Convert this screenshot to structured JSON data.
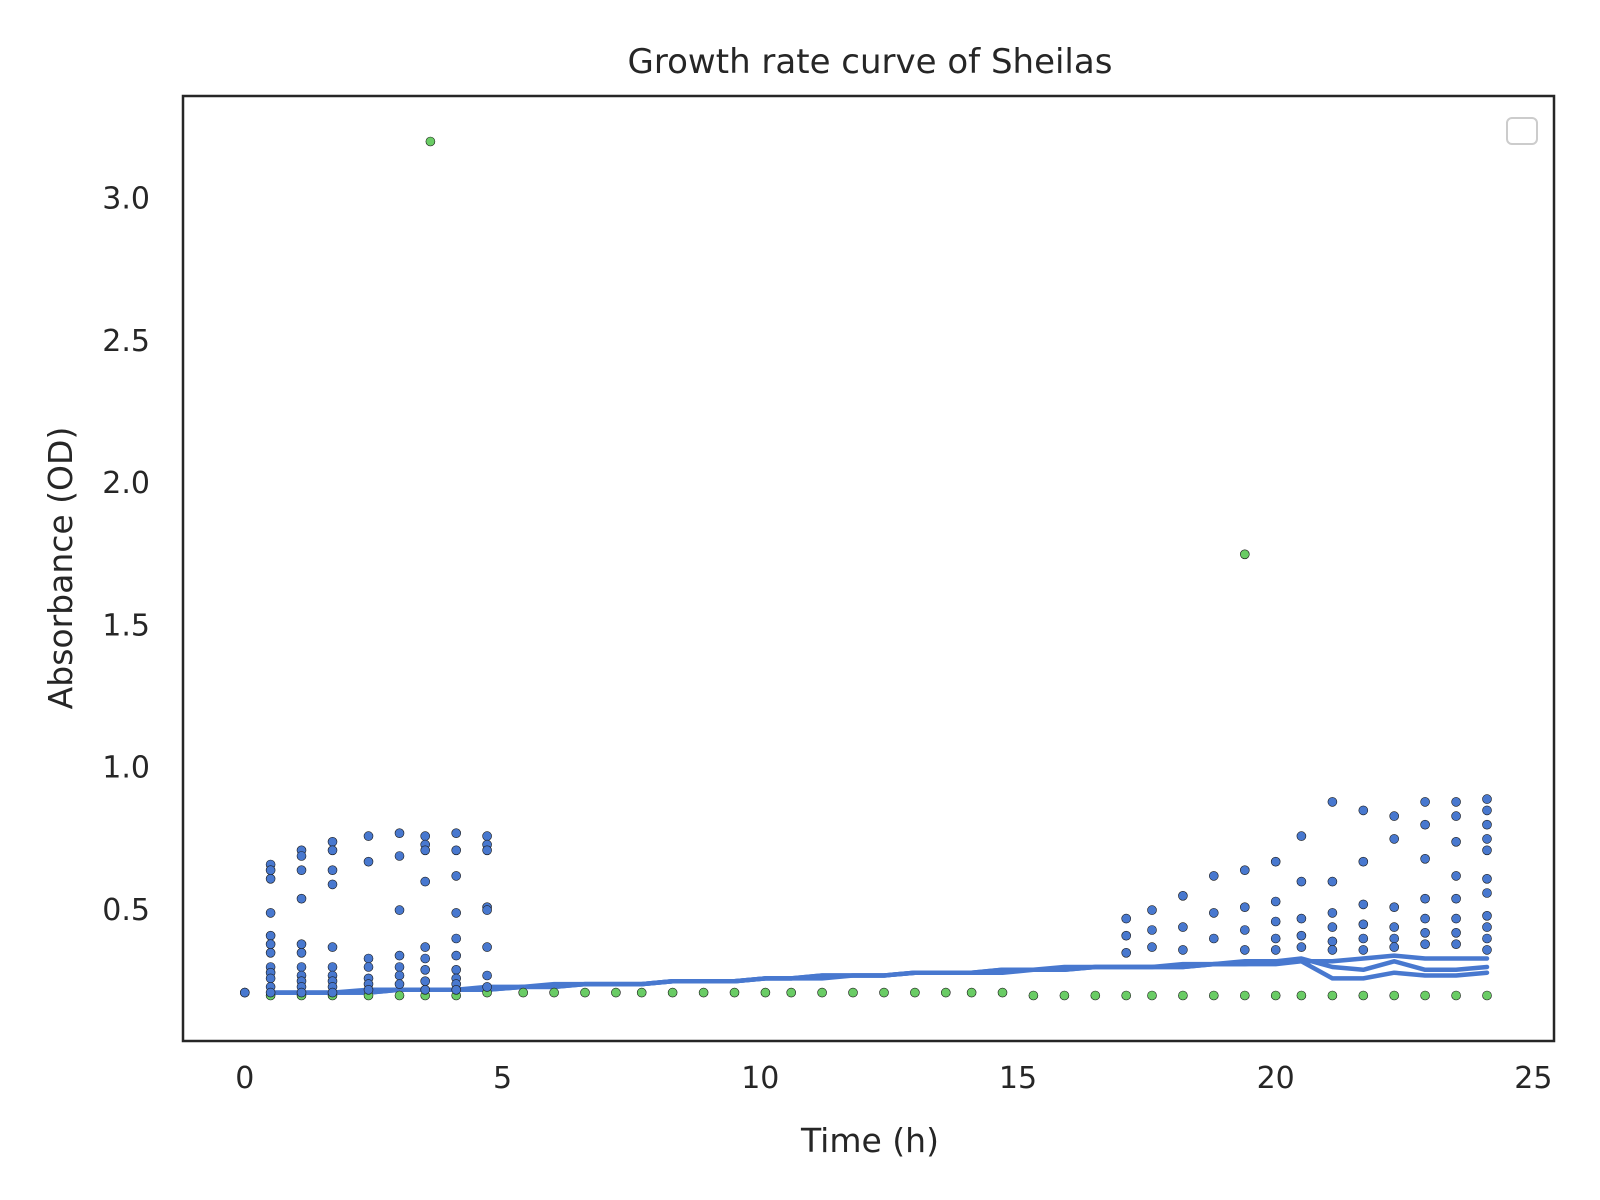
{
  "chart_data": {
    "type": "scatter",
    "title": "Growth rate curve of Sheilas",
    "xlabel": "Time (h)",
    "ylabel": "Absorbance (OD)",
    "xlim": [
      -1.2,
      25.4
    ],
    "ylim": [
      0.04,
      3.36
    ],
    "xticks": [
      0,
      5,
      10,
      15,
      20,
      25
    ],
    "xtick_labels": [
      "0",
      "5",
      "10",
      "15",
      "20",
      "25"
    ],
    "yticks": [
      0.5,
      1.0,
      1.5,
      2.0,
      2.5,
      3.0
    ],
    "ytick_labels": [
      "0.5",
      "1.0",
      "1.5",
      "2.0",
      "2.5",
      "3.0"
    ],
    "grid": false,
    "legend": {
      "placement": "top-right",
      "entries": []
    },
    "colors": {
      "series_blue": "#4878cf",
      "series_green": "#6acc65",
      "axes": "#262626",
      "legend_frame": "#cccccc"
    },
    "series": [
      {
        "color": "#6acc65",
        "marker": "dot",
        "x": [
          0,
          3.6,
          19.4,
          0.5,
          1.1,
          1.7,
          2.4,
          3.0,
          3.5,
          4.1,
          4.7,
          5.4,
          6.0,
          6.6,
          7.2,
          7.7,
          8.3,
          8.9,
          9.5,
          10.1,
          10.6,
          11.2,
          11.8,
          12.4,
          13.0,
          13.6,
          14.1,
          14.7,
          15.3,
          15.9,
          16.5,
          17.1,
          17.6,
          18.2,
          18.8,
          19.4,
          20.0,
          20.5,
          21.1,
          21.7,
          22.3,
          22.9,
          23.5,
          24.1
        ],
        "y": [
          0.21,
          3.2,
          1.75,
          0.2,
          0.2,
          0.2,
          0.2,
          0.2,
          0.2,
          0.2,
          0.21,
          0.21,
          0.21,
          0.21,
          0.21,
          0.21,
          0.21,
          0.21,
          0.21,
          0.21,
          0.21,
          0.21,
          0.21,
          0.21,
          0.21,
          0.21,
          0.21,
          0.21,
          0.2,
          0.2,
          0.2,
          0.2,
          0.2,
          0.2,
          0.2,
          0.2,
          0.2,
          0.2,
          0.2,
          0.2,
          0.2,
          0.2,
          0.2,
          0.2
        ]
      },
      {
        "color": "#4878cf",
        "marker": "dot",
        "x": [
          0,
          0.5,
          0.5,
          0.5,
          0.5,
          0.5,
          0.5,
          0.5,
          0.5,
          0.5,
          0.5,
          0.5,
          0.5,
          1.1,
          1.1,
          1.1,
          1.1,
          1.1,
          1.1,
          1.1,
          1.1,
          1.1,
          1.1,
          1.1,
          1.7,
          1.7,
          1.7,
          1.7,
          1.7,
          1.7,
          1.7,
          1.7,
          1.7,
          1.7,
          2.4,
          2.4,
          2.4,
          2.4,
          2.4,
          2.4,
          2.4,
          3.0,
          3.0,
          3.0,
          3.0,
          3.0,
          3.0,
          3.0,
          3.5,
          3.5,
          3.5,
          3.5,
          3.5,
          3.5,
          3.5,
          3.5,
          3.5,
          4.1,
          4.1,
          4.1,
          4.1,
          4.1,
          4.1,
          4.1,
          4.1,
          4.1,
          4.1,
          4.7,
          4.7,
          4.7,
          4.7,
          4.7,
          4.7,
          4.7,
          4.7,
          17.1,
          17.1,
          17.1,
          17.6,
          17.6,
          17.6,
          18.2,
          18.2,
          18.2,
          18.8,
          18.8,
          18.8,
          19.4,
          19.4,
          19.4,
          19.4,
          20.0,
          20.0,
          20.0,
          20.0,
          20.0,
          20.5,
          20.5,
          20.5,
          20.5,
          20.5,
          21.1,
          21.1,
          21.1,
          21.1,
          21.1,
          21.1,
          21.7,
          21.7,
          21.7,
          21.7,
          21.7,
          21.7,
          22.3,
          22.3,
          22.3,
          22.3,
          22.3,
          22.3,
          22.9,
          22.9,
          22.9,
          22.9,
          22.9,
          22.9,
          22.9,
          23.5,
          23.5,
          23.5,
          23.5,
          23.5,
          23.5,
          23.5,
          23.5,
          24.1,
          24.1,
          24.1,
          24.1,
          24.1,
          24.1,
          24.1,
          24.1,
          24.1,
          24.1,
          24.1
        ],
        "y": [
          0.21,
          0.66,
          0.64,
          0.61,
          0.49,
          0.41,
          0.38,
          0.35,
          0.3,
          0.28,
          0.26,
          0.23,
          0.21,
          0.71,
          0.69,
          0.64,
          0.54,
          0.38,
          0.35,
          0.3,
          0.27,
          0.25,
          0.23,
          0.21,
          0.74,
          0.71,
          0.64,
          0.59,
          0.37,
          0.3,
          0.27,
          0.25,
          0.23,
          0.21,
          0.76,
          0.67,
          0.33,
          0.3,
          0.26,
          0.24,
          0.22,
          0.77,
          0.69,
          0.5,
          0.34,
          0.3,
          0.27,
          0.24,
          0.76,
          0.73,
          0.71,
          0.6,
          0.37,
          0.33,
          0.29,
          0.25,
          0.22,
          0.77,
          0.71,
          0.62,
          0.49,
          0.4,
          0.34,
          0.29,
          0.26,
          0.24,
          0.22,
          0.76,
          0.73,
          0.71,
          0.51,
          0.5,
          0.37,
          0.27,
          0.23,
          0.47,
          0.41,
          0.35,
          0.5,
          0.43,
          0.37,
          0.55,
          0.44,
          0.36,
          0.62,
          0.49,
          0.4,
          0.64,
          0.51,
          0.43,
          0.36,
          0.67,
          0.53,
          0.46,
          0.4,
          0.36,
          0.76,
          0.6,
          0.47,
          0.41,
          0.37,
          0.88,
          0.6,
          0.49,
          0.44,
          0.39,
          0.36,
          0.85,
          0.67,
          0.52,
          0.45,
          0.4,
          0.36,
          0.83,
          0.75,
          0.51,
          0.44,
          0.4,
          0.37,
          0.88,
          0.8,
          0.68,
          0.54,
          0.47,
          0.42,
          0.38,
          0.88,
          0.83,
          0.74,
          0.62,
          0.54,
          0.47,
          0.42,
          0.38,
          0.89,
          0.85,
          0.8,
          0.75,
          0.71,
          0.61,
          0.56,
          0.48,
          0.44,
          0.4,
          0.36
        ]
      },
      {
        "color": "#4878cf",
        "marker": "line",
        "x": [
          0.5,
          1.1,
          1.7,
          2.4,
          3.0,
          3.5,
          4.1,
          4.7,
          5.4,
          6.0,
          6.6,
          7.2,
          7.7,
          8.3,
          8.9,
          9.5,
          10.1,
          10.6,
          11.2,
          11.8,
          12.4,
          13.0,
          13.6,
          14.1,
          14.7,
          15.3,
          15.9,
          16.5,
          17.1,
          17.6,
          18.2,
          18.8,
          19.4,
          20.0,
          20.5,
          21.1,
          21.7,
          22.3,
          22.9,
          23.5,
          24.1
        ],
        "y": [
          0.21,
          0.21,
          0.21,
          0.22,
          0.22,
          0.22,
          0.22,
          0.23,
          0.23,
          0.24,
          0.24,
          0.24,
          0.24,
          0.25,
          0.25,
          0.25,
          0.26,
          0.26,
          0.27,
          0.27,
          0.27,
          0.28,
          0.28,
          0.28,
          0.29,
          0.29,
          0.29,
          0.3,
          0.3,
          0.3,
          0.3,
          0.31,
          0.31,
          0.32,
          0.32,
          0.32,
          0.33,
          0.34,
          0.33,
          0.33,
          0.33
        ]
      },
      {
        "color": "#4878cf",
        "marker": "line",
        "x": [
          0.5,
          1.1,
          1.7,
          2.4,
          3.0,
          3.5,
          4.1,
          4.7,
          5.4,
          6.0,
          6.6,
          7.2,
          7.7,
          8.3,
          8.9,
          9.5,
          10.1,
          10.6,
          11.2,
          11.8,
          12.4,
          13.0,
          13.6,
          14.1,
          14.7,
          15.3,
          15.9,
          16.5,
          17.1,
          17.6,
          18.2,
          18.8,
          19.4,
          20.0,
          20.5,
          21.1,
          21.7,
          22.3,
          22.9,
          23.5,
          24.1
        ],
        "y": [
          0.21,
          0.21,
          0.21,
          0.21,
          0.22,
          0.22,
          0.22,
          0.22,
          0.23,
          0.23,
          0.24,
          0.24,
          0.24,
          0.25,
          0.25,
          0.25,
          0.26,
          0.26,
          0.26,
          0.27,
          0.27,
          0.28,
          0.28,
          0.28,
          0.28,
          0.29,
          0.29,
          0.3,
          0.3,
          0.3,
          0.3,
          0.31,
          0.31,
          0.31,
          0.32,
          0.26,
          0.26,
          0.28,
          0.27,
          0.27,
          0.28
        ]
      },
      {
        "color": "#4878cf",
        "marker": "line",
        "x": [
          0.5,
          1.1,
          1.7,
          2.4,
          3.0,
          3.5,
          4.1,
          4.7,
          5.4,
          6.0,
          6.6,
          7.2,
          7.7,
          8.3,
          8.9,
          9.5,
          10.1,
          10.6,
          11.2,
          11.8,
          12.4,
          13.0,
          13.6,
          14.1,
          14.7,
          15.3,
          15.9,
          16.5,
          17.1,
          17.6,
          18.2,
          18.8,
          19.4,
          20.0,
          20.5,
          21.1,
          21.7,
          22.3,
          22.9,
          23.5,
          24.1
        ],
        "y": [
          0.21,
          0.21,
          0.21,
          0.21,
          0.22,
          0.22,
          0.22,
          0.22,
          0.23,
          0.23,
          0.24,
          0.24,
          0.24,
          0.25,
          0.25,
          0.25,
          0.26,
          0.26,
          0.27,
          0.27,
          0.27,
          0.28,
          0.28,
          0.28,
          0.29,
          0.29,
          0.3,
          0.3,
          0.3,
          0.3,
          0.31,
          0.31,
          0.32,
          0.32,
          0.33,
          0.3,
          0.29,
          0.32,
          0.29,
          0.29,
          0.3
        ]
      }
    ]
  }
}
